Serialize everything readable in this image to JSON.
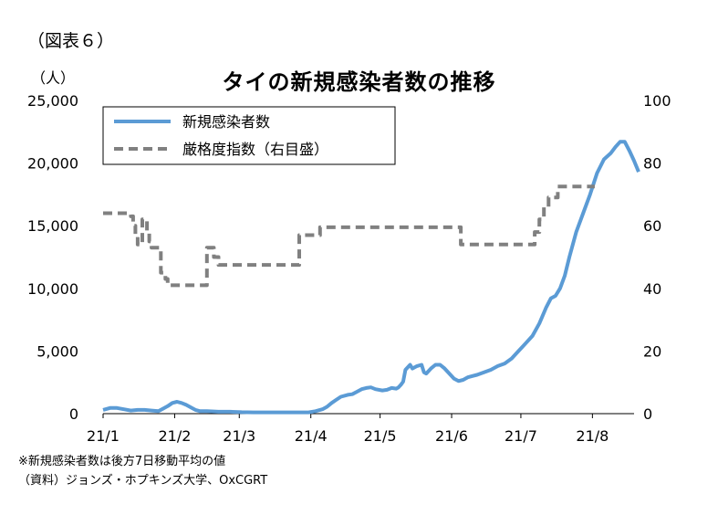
{
  "figure_label": "（図表６）",
  "unit_label": "（人）",
  "notes": [
    "※新規感染者数は後方7日移動平均の値",
    "（資料）ジョンズ・ホプキンズ大学、OxCGRT"
  ],
  "colors": {
    "cases": "#5b9bd5",
    "index": "#808080"
  },
  "chart_data": {
    "type": "line",
    "title": "タイの新規感染者数の推移",
    "x_tick_labels": [
      "21/1",
      "21/2",
      "21/3",
      "21/4",
      "21/5",
      "21/6",
      "21/7",
      "21/8"
    ],
    "x_tick_days": [
      0,
      31,
      59,
      90,
      120,
      151,
      181,
      212
    ],
    "y_left": {
      "ylim": [
        0,
        25000
      ],
      "ticks": [
        "0",
        "5,000",
        "10,000",
        "15,000",
        "20,000",
        "25,000"
      ],
      "tick_values": [
        0,
        5000,
        10000,
        15000,
        20000,
        25000
      ]
    },
    "y_right": {
      "ylim": [
        0,
        100
      ],
      "ticks": [
        "0",
        "20",
        "40",
        "60",
        "80",
        "100"
      ],
      "tick_values": [
        0,
        20,
        40,
        60,
        80,
        100
      ]
    },
    "legend_position": "top-left",
    "series": [
      {
        "name": "新規感染者数",
        "axis": "left",
        "style": "solid",
        "points": [
          [
            0,
            300
          ],
          [
            3,
            450
          ],
          [
            6,
            450
          ],
          [
            9,
            350
          ],
          [
            12,
            250
          ],
          [
            15,
            300
          ],
          [
            18,
            300
          ],
          [
            21,
            250
          ],
          [
            24,
            200
          ],
          [
            26,
            400
          ],
          [
            28,
            600
          ],
          [
            30,
            850
          ],
          [
            32,
            950
          ],
          [
            34,
            850
          ],
          [
            36,
            700
          ],
          [
            38,
            500
          ],
          [
            40,
            300
          ],
          [
            42,
            200
          ],
          [
            45,
            200
          ],
          [
            50,
            150
          ],
          [
            55,
            150
          ],
          [
            60,
            120
          ],
          [
            65,
            100
          ],
          [
            70,
            100
          ],
          [
            75,
            100
          ],
          [
            80,
            100
          ],
          [
            84,
            100
          ],
          [
            86,
            100
          ],
          [
            89,
            100
          ],
          [
            92,
            200
          ],
          [
            95,
            350
          ],
          [
            97,
            550
          ],
          [
            99,
            850
          ],
          [
            101,
            1100
          ],
          [
            103,
            1350
          ],
          [
            106,
            1500
          ],
          [
            108,
            1550
          ],
          [
            110,
            1750
          ],
          [
            112,
            1950
          ],
          [
            114,
            2050
          ],
          [
            116,
            2100
          ],
          [
            118,
            1950
          ],
          [
            121,
            1850
          ],
          [
            123,
            1900
          ],
          [
            125,
            2050
          ],
          [
            127,
            2000
          ],
          [
            128,
            2100
          ],
          [
            129,
            2300
          ],
          [
            130,
            2550
          ],
          [
            131,
            3500
          ],
          [
            133,
            3900
          ],
          [
            134,
            3600
          ],
          [
            136,
            3800
          ],
          [
            138,
            3900
          ],
          [
            139,
            3300
          ],
          [
            140,
            3200
          ],
          [
            142,
            3600
          ],
          [
            144,
            3900
          ],
          [
            146,
            3900
          ],
          [
            148,
            3600
          ],
          [
            150,
            3200
          ],
          [
            152,
            2800
          ],
          [
            154,
            2600
          ],
          [
            156,
            2700
          ],
          [
            158,
            2900
          ],
          [
            160,
            3000
          ],
          [
            162,
            3100
          ],
          [
            165,
            3300
          ],
          [
            168,
            3500
          ],
          [
            171,
            3800
          ],
          [
            174,
            4000
          ],
          [
            177,
            4400
          ],
          [
            180,
            5000
          ],
          [
            183,
            5600
          ],
          [
            186,
            6200
          ],
          [
            189,
            7200
          ],
          [
            192,
            8500
          ],
          [
            194,
            9200
          ],
          [
            196,
            9400
          ],
          [
            198,
            10000
          ],
          [
            200,
            11000
          ],
          [
            202,
            12500
          ],
          [
            205,
            14500
          ],
          [
            208,
            16000
          ],
          [
            211,
            17500
          ],
          [
            214,
            19200
          ],
          [
            217,
            20300
          ],
          [
            220,
            20800
          ],
          [
            222,
            21300
          ],
          [
            224,
            21700
          ],
          [
            226,
            21700
          ],
          [
            228,
            21000
          ],
          [
            230,
            20200
          ],
          [
            232,
            19300
          ]
        ]
      },
      {
        "name": "厳格度指数（右目盛）",
        "axis": "right",
        "style": "dashed",
        "points": [
          [
            0,
            64
          ],
          [
            12,
            64
          ],
          [
            12,
            63
          ],
          [
            13,
            63
          ],
          [
            13,
            60
          ],
          [
            14,
            60
          ],
          [
            14,
            57
          ],
          [
            15,
            57
          ],
          [
            15,
            54
          ],
          [
            17,
            54
          ],
          [
            17,
            62
          ],
          [
            19,
            62
          ],
          [
            19,
            58
          ],
          [
            20,
            58
          ],
          [
            20,
            55
          ],
          [
            21,
            55
          ],
          [
            21,
            53
          ],
          [
            25,
            53
          ],
          [
            25,
            45
          ],
          [
            27,
            45
          ],
          [
            27,
            43
          ],
          [
            28,
            43
          ],
          [
            28,
            41
          ],
          [
            45,
            41
          ],
          [
            45,
            53
          ],
          [
            48,
            53
          ],
          [
            48,
            50
          ],
          [
            50,
            50
          ],
          [
            50,
            47.5
          ],
          [
            85,
            47.5
          ],
          [
            85,
            57
          ],
          [
            94,
            57
          ],
          [
            94,
            59.5
          ],
          [
            155,
            59.5
          ],
          [
            155,
            54
          ],
          [
            187,
            54
          ],
          [
            187,
            58
          ],
          [
            189,
            58
          ],
          [
            189,
            62
          ],
          [
            191,
            62
          ],
          [
            191,
            66
          ],
          [
            193,
            66
          ],
          [
            193,
            69
          ],
          [
            197,
            69
          ],
          [
            197,
            72.5
          ],
          [
            213,
            72.5
          ]
        ]
      }
    ]
  }
}
